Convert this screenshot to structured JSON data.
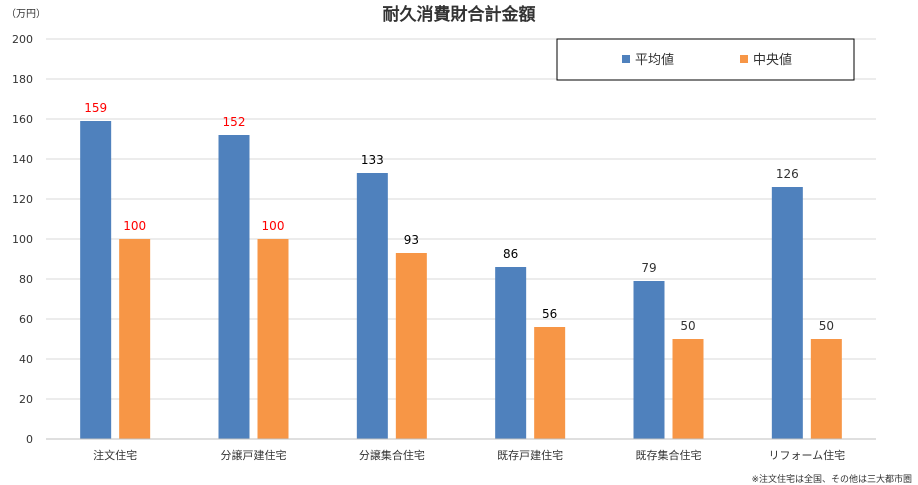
{
  "chart_data": {
    "type": "bar",
    "title": "耐久消費財合計金額",
    "unit_label": "（万円）",
    "note": "※注文住宅は全国、その他は三大都市圏",
    "ylim": [
      0,
      200
    ],
    "yticks": [
      0,
      20,
      40,
      60,
      80,
      100,
      120,
      140,
      160,
      180,
      200
    ],
    "grid": true,
    "legend_position": "top-right",
    "categories": [
      "注文住宅",
      "分譲戸建住宅",
      "分譲集合住宅",
      "既存戸建住宅",
      "既存集合住宅",
      "リフォーム住宅"
    ],
    "series": [
      {
        "name": "平均値",
        "color": "#4f81bd",
        "values": [
          159,
          152,
          133,
          86,
          79,
          126
        ],
        "label_colors": [
          "#ff0000",
          "#ff0000",
          "#000000",
          "#000000",
          "#333333",
          "#333333"
        ]
      },
      {
        "name": "中央値",
        "color": "#f79646",
        "values": [
          100,
          100,
          93,
          56,
          50,
          50
        ],
        "label_colors": [
          "#ff0000",
          "#ff0000",
          "#000000",
          "#000000",
          "#333333",
          "#333333"
        ]
      }
    ]
  }
}
